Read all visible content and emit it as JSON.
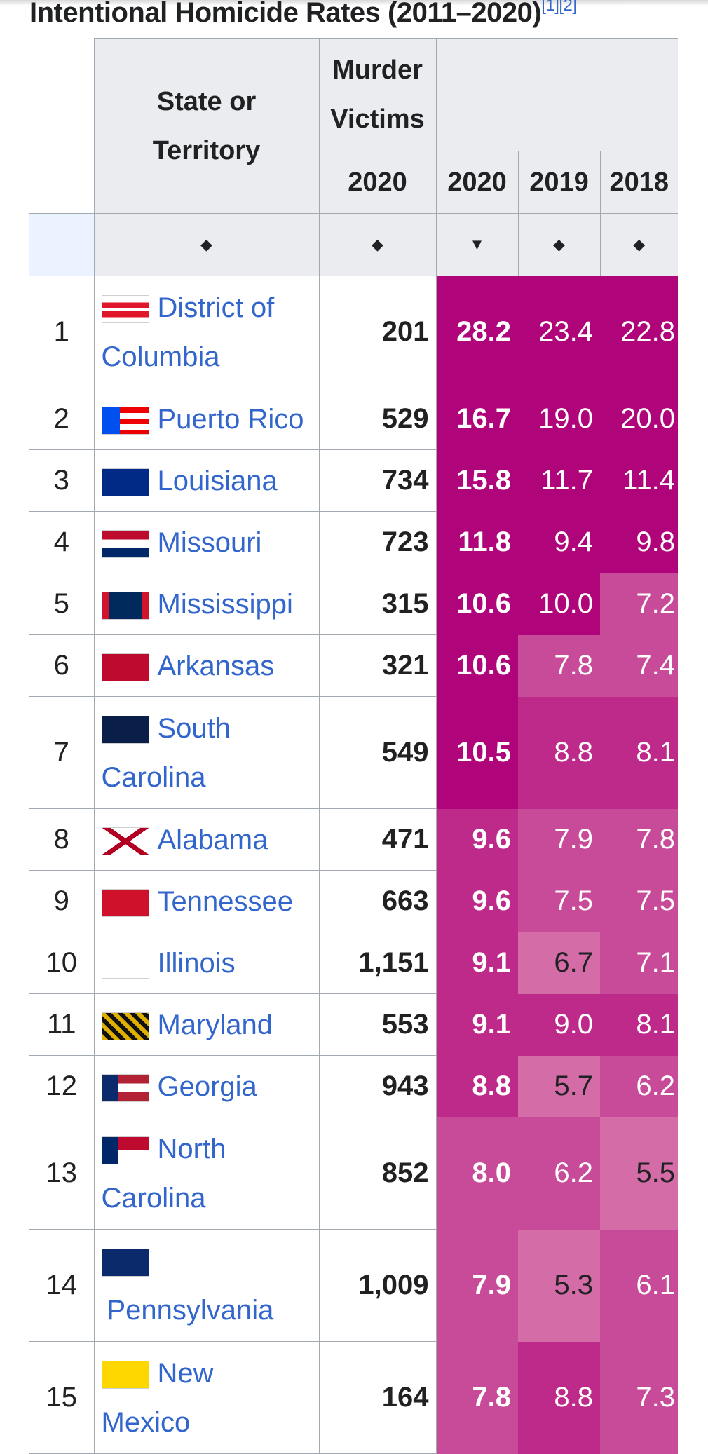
{
  "title": "Intentional Homicide Rates (2011–2020)",
  "title_refs": "[1][2]",
  "headers": {
    "state": "State or Territory",
    "state_line1": "State or",
    "state_line2": "Territory",
    "murder_victims_line1": "Murder",
    "murder_victims_line2": "Victims",
    "victims_year": "2020",
    "rate_years": [
      "2020",
      "2019",
      "2018"
    ],
    "sort_icon": "sort-updown-icon",
    "sorted_icon": "sort-down-icon"
  },
  "colors": {
    "header_bg": "#eaecf0",
    "border": "#a2a9b1",
    "link": "#3366cc",
    "rate_darkest": "#b0057a",
    "rate_dark": "#bd2a8a",
    "rate_mid": "#c84b99",
    "rate_light": "#d46ca8"
  },
  "rows": [
    {
      "rank": "1",
      "state1": "District of",
      "state2": "Columbia",
      "flag": "flag-district-of-columbia",
      "victims": "201",
      "r2020": "28.2",
      "r2019": "23.4",
      "r2018": "22.8"
    },
    {
      "rank": "2",
      "state1": "Puerto Rico",
      "state2": "",
      "flag": "flag-puerto-rico",
      "victims": "529",
      "r2020": "16.7",
      "r2019": "19.0",
      "r2018": "20.0"
    },
    {
      "rank": "3",
      "state1": "Louisiana",
      "state2": "",
      "flag": "flag-louisiana",
      "victims": "734",
      "r2020": "15.8",
      "r2019": "11.7",
      "r2018": "11.4"
    },
    {
      "rank": "4",
      "state1": "Missouri",
      "state2": "",
      "flag": "flag-missouri",
      "victims": "723",
      "r2020": "11.8",
      "r2019": "9.4",
      "r2018": "9.8"
    },
    {
      "rank": "5",
      "state1": "Mississippi",
      "state2": "",
      "flag": "flag-mississippi",
      "victims": "315",
      "r2020": "10.6",
      "r2019": "10.0",
      "r2018": "7.2"
    },
    {
      "rank": "6",
      "state1": "Arkansas",
      "state2": "",
      "flag": "flag-arkansas",
      "victims": "321",
      "r2020": "10.6",
      "r2019": "7.8",
      "r2018": "7.4"
    },
    {
      "rank": "7",
      "state1": "South",
      "state2": "Carolina",
      "flag": "flag-south-carolina",
      "victims": "549",
      "r2020": "10.5",
      "r2019": "8.8",
      "r2018": "8.1"
    },
    {
      "rank": "8",
      "state1": "Alabama",
      "state2": "",
      "flag": "flag-alabama",
      "victims": "471",
      "r2020": "9.6",
      "r2019": "7.9",
      "r2018": "7.8"
    },
    {
      "rank": "9",
      "state1": "Tennessee",
      "state2": "",
      "flag": "flag-tennessee",
      "victims": "663",
      "r2020": "9.6",
      "r2019": "7.5",
      "r2018": "7.5"
    },
    {
      "rank": "10",
      "state1": "Illinois",
      "state2": "",
      "flag": "flag-illinois",
      "victims": "1,151",
      "r2020": "9.1",
      "r2019": "6.7",
      "r2018": "7.1"
    },
    {
      "rank": "11",
      "state1": "Maryland",
      "state2": "",
      "flag": "flag-maryland",
      "victims": "553",
      "r2020": "9.1",
      "r2019": "9.0",
      "r2018": "8.1"
    },
    {
      "rank": "12",
      "state1": "Georgia",
      "state2": "",
      "flag": "flag-georgia",
      "victims": "943",
      "r2020": "8.8",
      "r2019": "5.7",
      "r2018": "6.2"
    },
    {
      "rank": "13",
      "state1": "North",
      "state2": "Carolina",
      "flag": "flag-north-carolina",
      "victims": "852",
      "r2020": "8.0",
      "r2019": "6.2",
      "r2018": "5.5"
    },
    {
      "rank": "14",
      "state1": "",
      "state2": "Pennsylvania",
      "flag": "flag-pennsylvania",
      "victims": "1,009",
      "r2020": "7.9",
      "r2019": "5.3",
      "r2018": "6.1"
    },
    {
      "rank": "15",
      "state1": "New",
      "state2": "Mexico",
      "flag": "flag-new-mexico",
      "victims": "164",
      "r2020": "7.8",
      "r2019": "8.8",
      "r2018": "7.3"
    }
  ]
}
